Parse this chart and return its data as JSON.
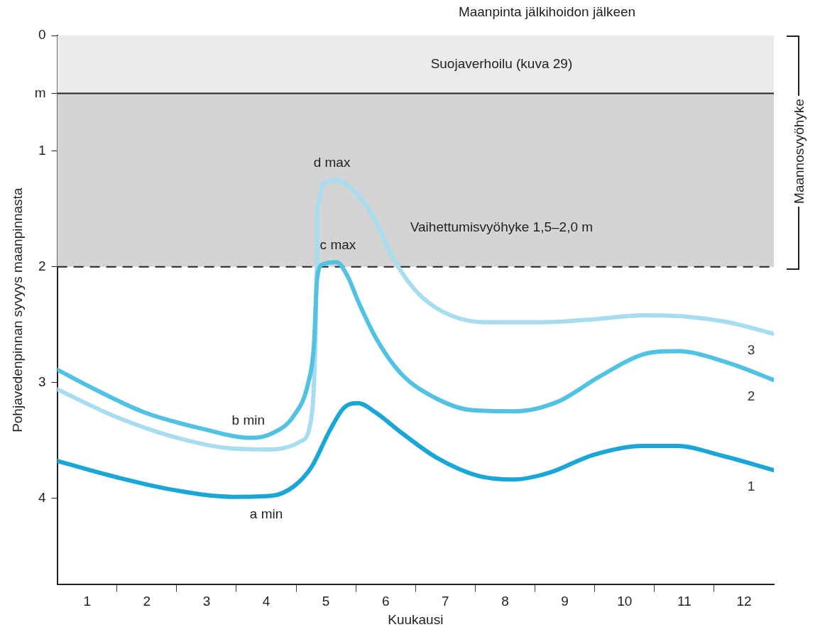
{
  "chart_data": {
    "type": "line",
    "xlabel": "Kuukausi",
    "ylabel": "Pohjavedenpinnan syvyys maanpinnasta",
    "xlim": [
      0.5,
      12.5
    ],
    "xticks": [
      1,
      {
        "value": 1.5,
        "label": null
      },
      2,
      {
        "value": 2.5,
        "label": null
      },
      3,
      {
        "value": 3.5,
        "label": null
      },
      4,
      {
        "value": 4.5,
        "label": null
      },
      5,
      {
        "value": 5.5,
        "label": null
      },
      6,
      {
        "value": 6.5,
        "label": null
      },
      7,
      {
        "value": 7.5,
        "label": null
      },
      8,
      {
        "value": 8.5,
        "label": null
      },
      9,
      {
        "value": 9.5,
        "label": null
      },
      10,
      {
        "value": 10.5,
        "label": null
      },
      11,
      {
        "value": 11.5,
        "label": null
      },
      12
    ],
    "ylim": [
      4.75,
      0
    ],
    "yticks": [
      0,
      {
        "value": 0.5,
        "label": "m"
      },
      1,
      2,
      3,
      4
    ],
    "grid": false,
    "legend": false,
    "marker": "none",
    "line_style": "solid",
    "series": [
      {
        "name": "1",
        "color": "#1ba6d8",
        "x": [
          0.5,
          1.49,
          2.44,
          3.43,
          4.1,
          4.46,
          4.76,
          5.06,
          5.3,
          5.54,
          5.83,
          6.25,
          6.85,
          7.56,
          8.15,
          8.75,
          9.46,
          10.3,
          10.89,
          11.6,
          12.5
        ],
        "values": [
          3.68,
          3.82,
          3.93,
          3.99,
          3.98,
          3.9,
          3.73,
          3.42,
          3.22,
          3.18,
          3.26,
          3.43,
          3.65,
          3.81,
          3.84,
          3.78,
          3.63,
          3.55,
          3.55,
          3.63,
          3.76
        ]
      },
      {
        "name": "2",
        "color": "#52c2e2",
        "x": [
          0.5,
          1.13,
          1.96,
          2.92,
          3.75,
          4.1,
          4.46,
          4.7,
          4.8,
          4.85,
          4.94,
          5.18,
          5.36,
          5.54,
          5.83,
          6.25,
          6.85,
          7.44,
          8.15,
          8.87,
          9.58,
          10.3,
          10.89,
          11.73,
          12.5
        ],
        "values": [
          2.89,
          3.06,
          3.26,
          3.4,
          3.48,
          3.44,
          3.29,
          3.01,
          2.67,
          2.11,
          1.98,
          1.96,
          2.08,
          2.3,
          2.61,
          2.92,
          3.14,
          3.24,
          3.25,
          3.17,
          2.95,
          2.76,
          2.73,
          2.83,
          2.98
        ]
      },
      {
        "name": "3",
        "color": "#a8ddf0",
        "x": [
          0.5,
          1.49,
          2.44,
          3.39,
          4.1,
          4.58,
          4.76,
          4.82,
          4.85,
          4.85,
          4.94,
          5.14,
          5.42,
          5.77,
          6.13,
          6.49,
          6.96,
          7.68,
          8.63,
          9.58,
          10.3,
          11.01,
          11.73,
          12.5
        ],
        "values": [
          3.06,
          3.3,
          3.47,
          3.57,
          3.58,
          3.51,
          3.29,
          2.73,
          1.99,
          1.49,
          1.3,
          1.25,
          1.32,
          1.55,
          1.93,
          2.2,
          2.39,
          2.48,
          2.48,
          2.45,
          2.42,
          2.43,
          2.48,
          2.58
        ]
      }
    ],
    "bands": [
      {
        "axis": "y",
        "from": 0,
        "to": 0.5,
        "label": "Suojaverhoilu (kuva 29)",
        "color": "#ebebeb"
      },
      {
        "axis": "y",
        "from": 0.5,
        "to": 2,
        "label": "Vaihettumisvyöhyke 1,5–2,0 m",
        "color": "#d4d4d4"
      }
    ],
    "ref_lines": [
      {
        "axis": "y",
        "value": 0.5,
        "color": "#222222",
        "line_style": "solid"
      },
      {
        "axis": "y",
        "value": 2,
        "color": "#222222",
        "line_style": "dashed"
      }
    ],
    "annotations": [
      "Maanpinta jälkihoidon jälkeen",
      "Maannosvyöhyke",
      {
        "text": "a min",
        "x": 4,
        "y": 4.0
      },
      {
        "text": "b min",
        "x": 3.7,
        "y": 3.48
      },
      {
        "text": "c max",
        "x": 5.2,
        "y": 1.96
      },
      {
        "text": "d max",
        "x": 5.1,
        "y": 1.25
      }
    ]
  }
}
